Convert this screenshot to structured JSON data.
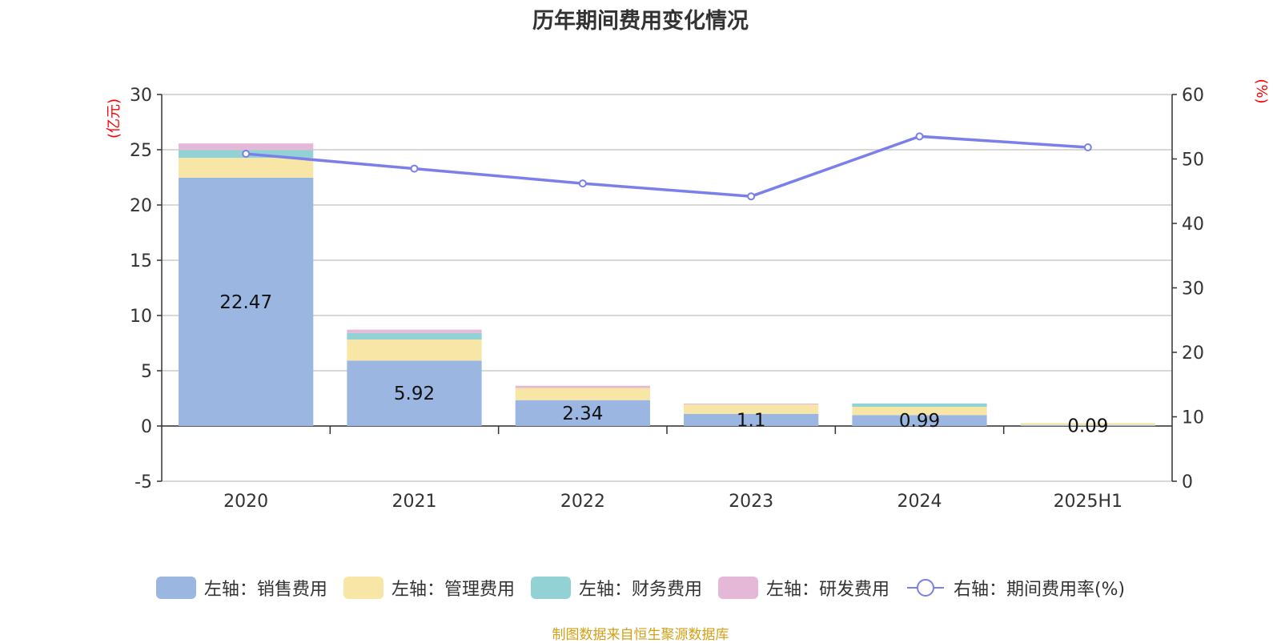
{
  "chart_data": {
    "type": "bar",
    "title": "历年期间费用变化情况",
    "categories": [
      "2020",
      "2021",
      "2022",
      "2023",
      "2024",
      "2025H1"
    ],
    "left_axis": {
      "label": "(亿元)",
      "ylim": [
        -5,
        30
      ],
      "ticks": [
        -5,
        0,
        5,
        10,
        15,
        20,
        25,
        30
      ]
    },
    "right_axis": {
      "label": "(%)",
      "ylim": [
        0,
        60
      ],
      "ticks": [
        0,
        10,
        20,
        30,
        40,
        50,
        60
      ]
    },
    "series": [
      {
        "name": "左轴：销售费用",
        "axis": "left",
        "type": "bar",
        "color": "#9bb7e1",
        "values": [
          22.47,
          5.92,
          2.34,
          1.1,
          0.99,
          0.09
        ],
        "data_labels": [
          "22.47",
          "5.92",
          "2.34",
          "1.1",
          "0.99",
          "0.09"
        ]
      },
      {
        "name": "左轴：管理费用",
        "axis": "left",
        "type": "bar",
        "color": "#f7e6a5",
        "values": [
          1.8,
          1.9,
          1.1,
          0.85,
          0.75,
          0.18
        ]
      },
      {
        "name": "左轴：财务费用",
        "axis": "left",
        "type": "bar",
        "color": "#93d2d4",
        "values": [
          0.7,
          0.6,
          0.0,
          0.0,
          0.3,
          0.0
        ]
      },
      {
        "name": "左轴：研发费用",
        "axis": "left",
        "type": "bar",
        "color": "#e6b8d8",
        "values": [
          0.6,
          0.3,
          0.2,
          0.08,
          0.0,
          0.0
        ]
      },
      {
        "name": "右轴：期间费用率(%)",
        "axis": "right",
        "type": "line",
        "color": "#7b7fea",
        "values": [
          50.8,
          48.5,
          46.2,
          44.2,
          53.5,
          51.8
        ]
      }
    ],
    "grid": true,
    "legend_position": "bottom"
  },
  "source_note": "制图数据来自恒生聚源数据库"
}
